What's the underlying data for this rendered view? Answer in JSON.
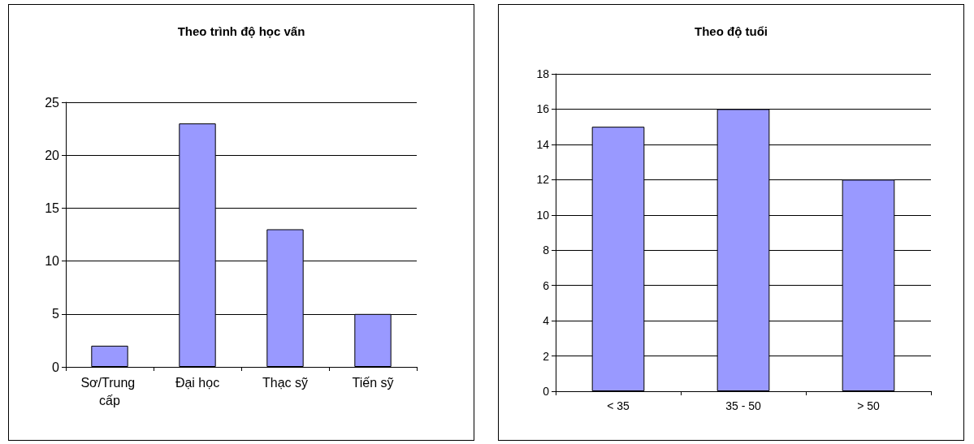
{
  "chart_data": [
    {
      "type": "bar",
      "title": "Theo trình độ học vấn",
      "categories": [
        "Sơ/Trung cấp",
        "Đại học",
        "Thạc sỹ",
        "Tiến sỹ"
      ],
      "values": [
        2,
        23,
        13,
        5
      ],
      "color": "#9999ff",
      "ylim": [
        0,
        25
      ],
      "yticks": [
        0,
        5,
        10,
        15,
        20,
        25
      ],
      "grid": "y"
    },
    {
      "type": "bar",
      "title": "Theo độ tuổi",
      "categories": [
        "< 35",
        "35 - 50",
        "> 50"
      ],
      "values": [
        15,
        16,
        12
      ],
      "color": "#9999ff",
      "ylim": [
        0,
        18
      ],
      "yticks": [
        0,
        2,
        4,
        6,
        8,
        10,
        12,
        14,
        16,
        18
      ],
      "grid": "y"
    }
  ]
}
